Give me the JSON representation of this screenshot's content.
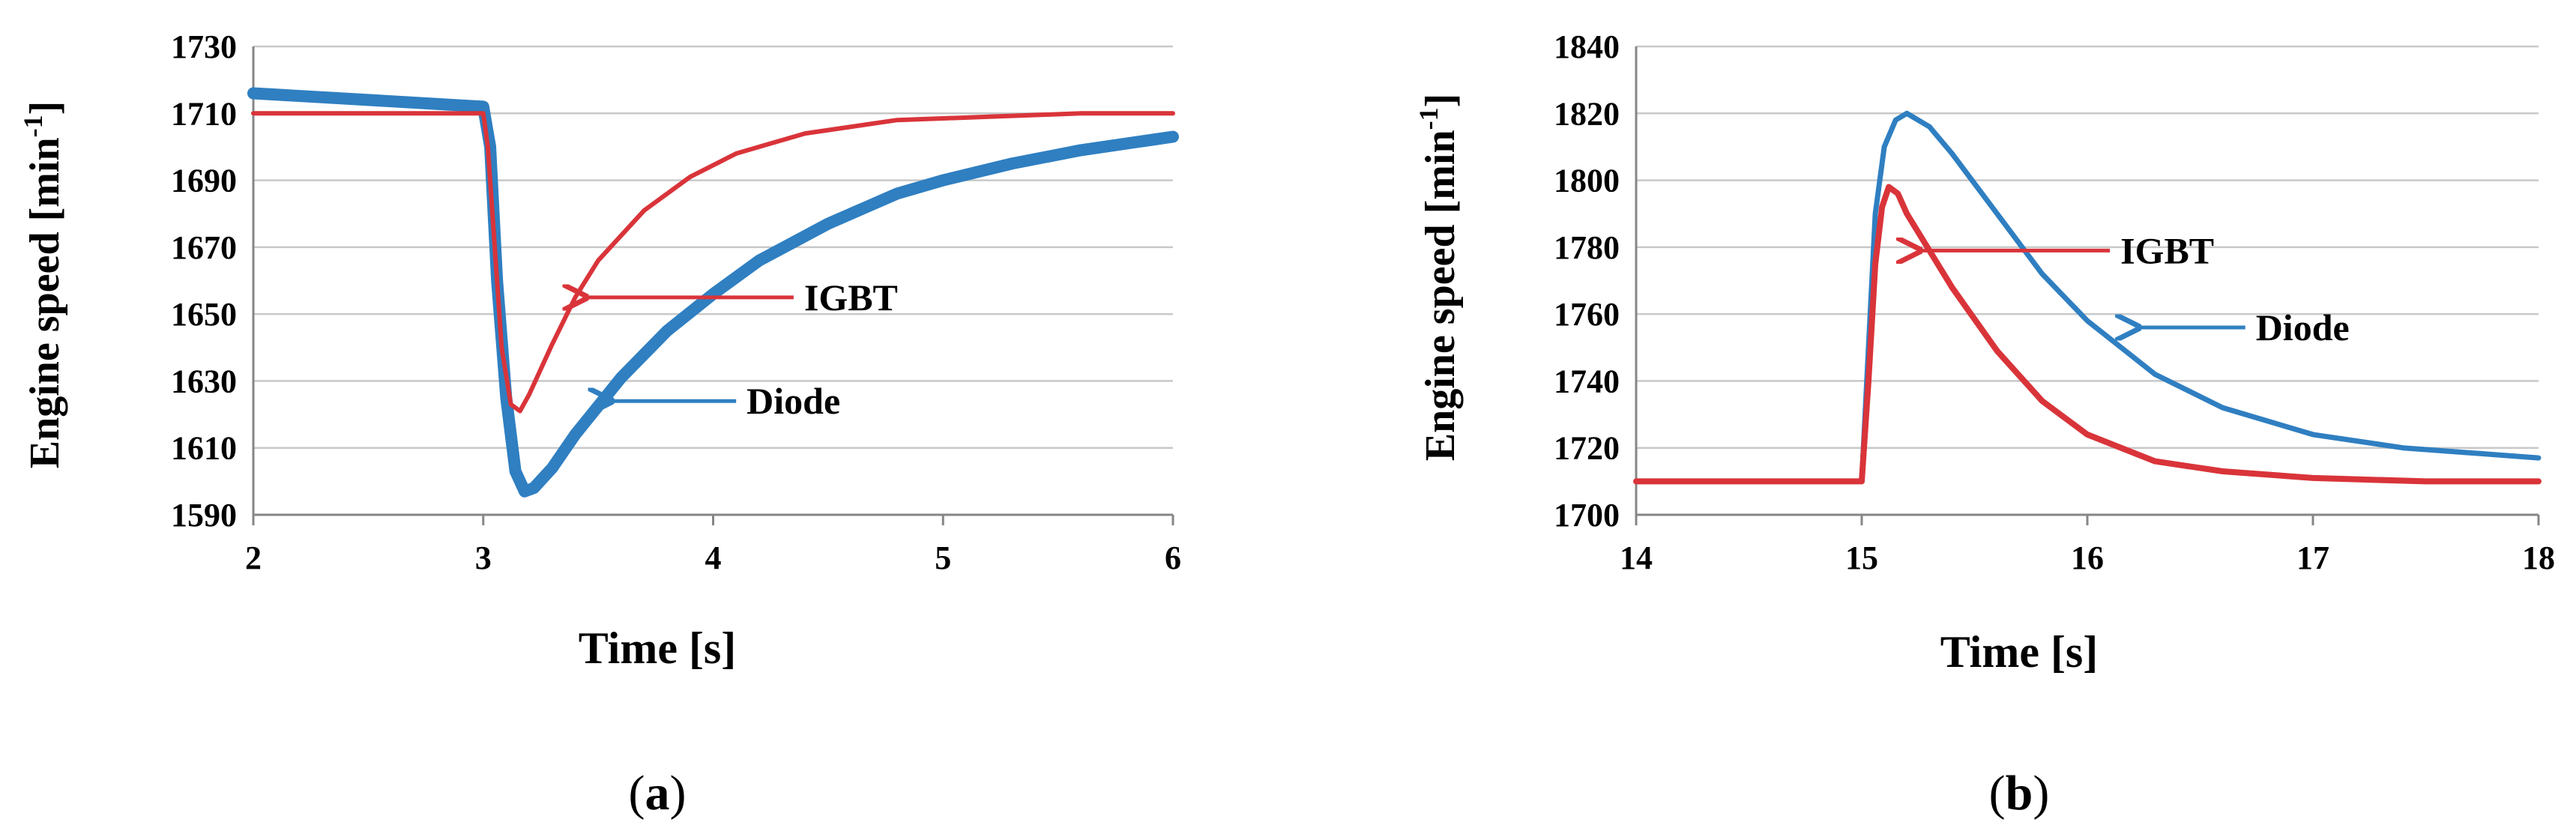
{
  "chart_data": [
    {
      "type": "line",
      "panel_label": "(a)",
      "panel_letter": "a",
      "xlabel": "Time [s]",
      "ylabel": "Engine speed [min-1]",
      "ylabel_main": "Engine speed [min",
      "ylabel_sup": "-1",
      "ylabel_close": "]",
      "xlim": [
        2,
        6
      ],
      "ylim": [
        1590,
        1730
      ],
      "xticks": [
        2,
        3,
        4,
        5,
        6
      ],
      "yticks": [
        1590,
        1610,
        1630,
        1650,
        1670,
        1690,
        1710,
        1730
      ],
      "grid": true,
      "series": [
        {
          "name": "Diode",
          "color": "#2f7fc1",
          "x": [
            2,
            2.5,
            3,
            3.03,
            3.06,
            3.1,
            3.14,
            3.18,
            3.22,
            3.3,
            3.4,
            3.6,
            3.8,
            4.0,
            4.2,
            4.5,
            4.8,
            5.0,
            5.3,
            5.6,
            6.0
          ],
          "y": [
            1716,
            1714,
            1712,
            1700,
            1660,
            1625,
            1603,
            1597,
            1598,
            1604,
            1614,
            1631,
            1645,
            1656,
            1666,
            1677,
            1686,
            1690,
            1695,
            1699,
            1703
          ]
        },
        {
          "name": "IGBT",
          "color": "#d9343a",
          "x": [
            2,
            2.5,
            3,
            3.02,
            3.05,
            3.08,
            3.12,
            3.16,
            3.2,
            3.3,
            3.4,
            3.5,
            3.7,
            3.9,
            4.1,
            4.4,
            4.8,
            5.2,
            5.6,
            6.0
          ],
          "y": [
            1710,
            1710,
            1710,
            1700,
            1670,
            1640,
            1623,
            1621,
            1626,
            1641,
            1655,
            1666,
            1681,
            1691,
            1698,
            1704,
            1708,
            1709,
            1710,
            1710
          ]
        }
      ],
      "annotations": [
        {
          "text": "IGBT",
          "series": "IGBT",
          "arrow_from": [
            4.35,
            1655
          ],
          "arrow_to": [
            3.44,
            1655
          ]
        },
        {
          "text": "Diode",
          "series": "Diode",
          "arrow_from": [
            4.1,
            1624
          ],
          "arrow_to": [
            3.55,
            1624
          ]
        }
      ]
    },
    {
      "type": "line",
      "panel_label": "(b)",
      "panel_letter": "b",
      "xlabel": "Time [s]",
      "ylabel": "Engine speed [min-1]",
      "ylabel_main": "Engine speed [min",
      "ylabel_sup": "-1",
      "ylabel_close": "]",
      "xlim": [
        14,
        18
      ],
      "ylim": [
        1700,
        1840
      ],
      "xticks": [
        14,
        15,
        16,
        17,
        18
      ],
      "yticks": [
        1700,
        1720,
        1740,
        1760,
        1780,
        1800,
        1820,
        1840
      ],
      "grid": true,
      "series": [
        {
          "name": "Diode",
          "color": "#2f7fc1",
          "x": [
            14,
            14.5,
            15,
            15.03,
            15.06,
            15.1,
            15.15,
            15.2,
            15.3,
            15.4,
            15.6,
            15.8,
            16.0,
            16.3,
            16.6,
            17.0,
            17.4,
            17.8,
            18.0
          ],
          "y": [
            1710,
            1710,
            1710,
            1750,
            1790,
            1810,
            1818,
            1820,
            1816,
            1808,
            1790,
            1772,
            1758,
            1742,
            1732,
            1724,
            1720,
            1718,
            1717
          ]
        },
        {
          "name": "IGBT",
          "color": "#d9343a",
          "x": [
            14,
            14.5,
            15,
            15.03,
            15.06,
            15.09,
            15.12,
            15.16,
            15.2,
            15.3,
            15.4,
            15.6,
            15.8,
            16.0,
            16.3,
            16.6,
            17.0,
            17.5,
            18.0
          ],
          "y": [
            1710,
            1710,
            1710,
            1740,
            1775,
            1792,
            1798,
            1796,
            1790,
            1779,
            1768,
            1749,
            1734,
            1724,
            1716,
            1713,
            1711,
            1710,
            1710
          ]
        }
      ],
      "annotations": [
        {
          "text": "IGBT",
          "series": "IGBT",
          "arrow_from": [
            16.1,
            1779
          ],
          "arrow_to": [
            15.25,
            1779
          ]
        },
        {
          "text": "Diode",
          "series": "Diode",
          "arrow_from": [
            16.7,
            1756
          ],
          "arrow_to": [
            16.22,
            1756
          ]
        }
      ]
    }
  ]
}
